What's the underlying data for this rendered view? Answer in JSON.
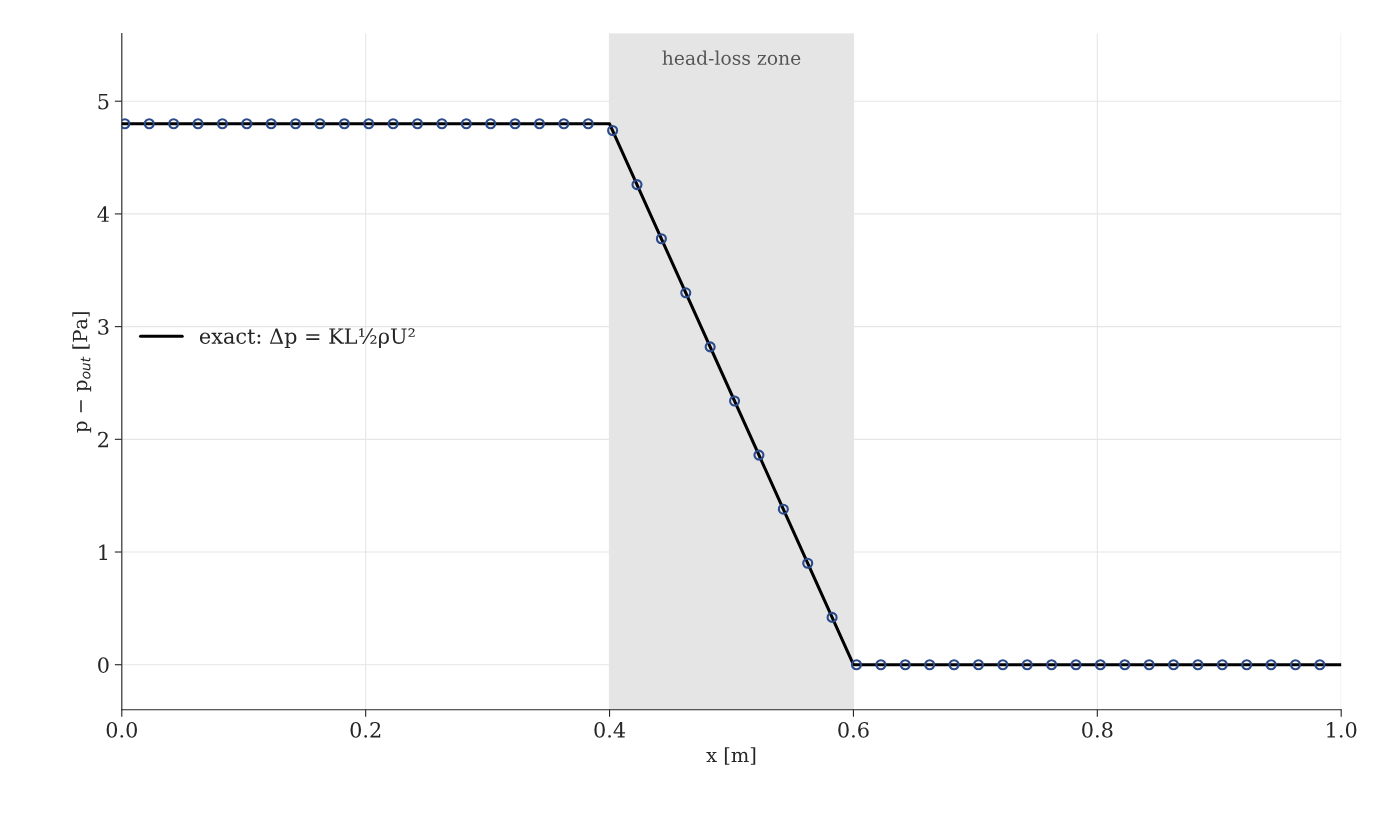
{
  "chart_data": {
    "type": "line",
    "xlabel": "x [m]",
    "ylabel": "p − p$_{out}$ [Pa]",
    "series": [
      {
        "name": "exact: Δp = KL½ρU²",
        "color": "#000000",
        "line_style": "solid",
        "marker": "none",
        "x": [
          0,
          0.4,
          0.6,
          1
        ],
        "values": [
          4.8,
          4.8,
          0,
          0
        ]
      },
      {
        "type": "scatter",
        "color": "#2b4a8a",
        "marker": "circle",
        "x": [
          0.0025,
          0.0225,
          0.0425,
          0.0625,
          0.0825,
          0.1025,
          0.1225,
          0.1425,
          0.1625,
          0.1825,
          0.2025,
          0.2225,
          0.2425,
          0.2625,
          0.2825,
          0.3025,
          0.3225,
          0.3425,
          0.3625,
          0.3825,
          0.4025,
          0.4225,
          0.4425,
          0.4625,
          0.4825,
          0.5025,
          0.5225,
          0.5425,
          0.5625,
          0.5825,
          0.6025,
          0.6225,
          0.6425,
          0.6625,
          0.6825,
          0.7025,
          0.7225,
          0.7425,
          0.7625,
          0.7825,
          0.8025,
          0.8225,
          0.8425,
          0.8625,
          0.8825,
          0.9025,
          0.9225,
          0.9425,
          0.9625,
          0.9825
        ],
        "values": [
          4.8,
          4.8,
          4.8,
          4.8,
          4.8,
          4.8,
          4.8,
          4.8,
          4.8,
          4.8,
          4.8,
          4.8,
          4.8,
          4.8,
          4.8,
          4.8,
          4.8,
          4.8,
          4.8,
          4.8,
          4.74,
          4.26,
          3.78,
          3.3,
          2.82,
          2.34,
          1.86,
          1.38,
          0.9,
          0.42,
          0,
          0,
          0,
          0,
          0,
          0,
          0,
          0,
          0,
          0,
          0,
          0,
          0,
          0,
          0,
          0,
          0,
          0,
          0,
          0
        ]
      }
    ],
    "bands": [
      {
        "axis": "x",
        "from": 0.4,
        "to": 0.6,
        "label": "head-loss zone",
        "color": "#e5e5e5"
      }
    ],
    "xlim": [
      0,
      1
    ],
    "xticks": [
      {
        "value": 0,
        "label": "0.0"
      },
      0.2,
      0.4,
      0.6,
      0.8,
      {
        "value": 1,
        "label": "1.0"
      }
    ],
    "ylim": [
      -0.4,
      5.6
    ],
    "yticks": [
      0,
      1,
      2,
      3,
      4,
      5
    ],
    "grid": true,
    "legend": "left"
  }
}
